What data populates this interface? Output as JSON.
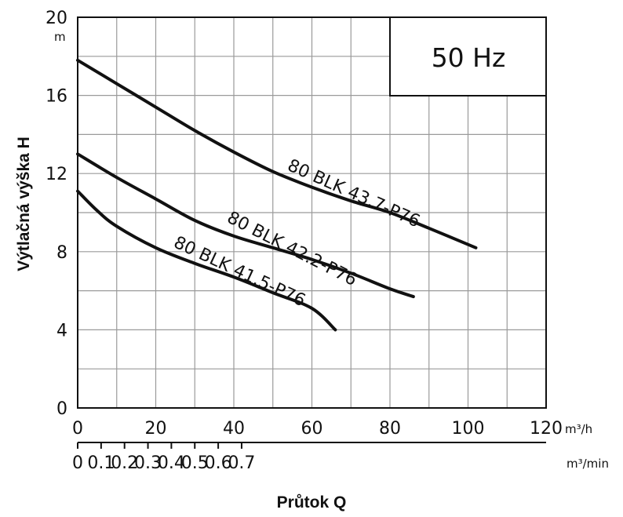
{
  "chart_data": {
    "type": "line",
    "annotation": "50 Hz",
    "ylabel": "Výtlačná výška H",
    "yunit": "m",
    "xlabel": "Průtok Q",
    "xunit_top": "m³/h",
    "xunit_bottom": "m³/min",
    "xlim": [
      0,
      120
    ],
    "ylim": [
      0,
      20
    ],
    "yticks": [
      0,
      4,
      8,
      12,
      16,
      20
    ],
    "xticks_top": [
      0,
      20,
      40,
      60,
      80,
      100,
      120
    ],
    "xticks_bottom": [
      0,
      0.1,
      0.2,
      0.3,
      0.4,
      0.5,
      0.6,
      0.7
    ],
    "grid": true,
    "series": [
      {
        "name": "80 BLK 43.7-P76",
        "x": [
          0,
          10,
          20,
          30,
          40,
          50,
          60,
          70,
          80,
          90,
          102
        ],
        "y": [
          17.8,
          16.6,
          15.4,
          14.2,
          13.1,
          12.1,
          11.3,
          10.6,
          10.0,
          9.2,
          8.2
        ]
      },
      {
        "name": "80 BLK 42.2-P76",
        "x": [
          0,
          10,
          20,
          30,
          40,
          50,
          60,
          70,
          80,
          86
        ],
        "y": [
          13.0,
          11.8,
          10.7,
          9.6,
          8.8,
          8.2,
          7.6,
          6.9,
          6.1,
          5.7
        ]
      },
      {
        "name": "80 BLK 41.5-P76",
        "x": [
          0,
          5,
          10,
          20,
          30,
          40,
          50,
          60,
          66
        ],
        "y": [
          11.1,
          10.1,
          9.3,
          8.2,
          7.4,
          6.7,
          5.9,
          5.1,
          4.0
        ]
      }
    ]
  }
}
